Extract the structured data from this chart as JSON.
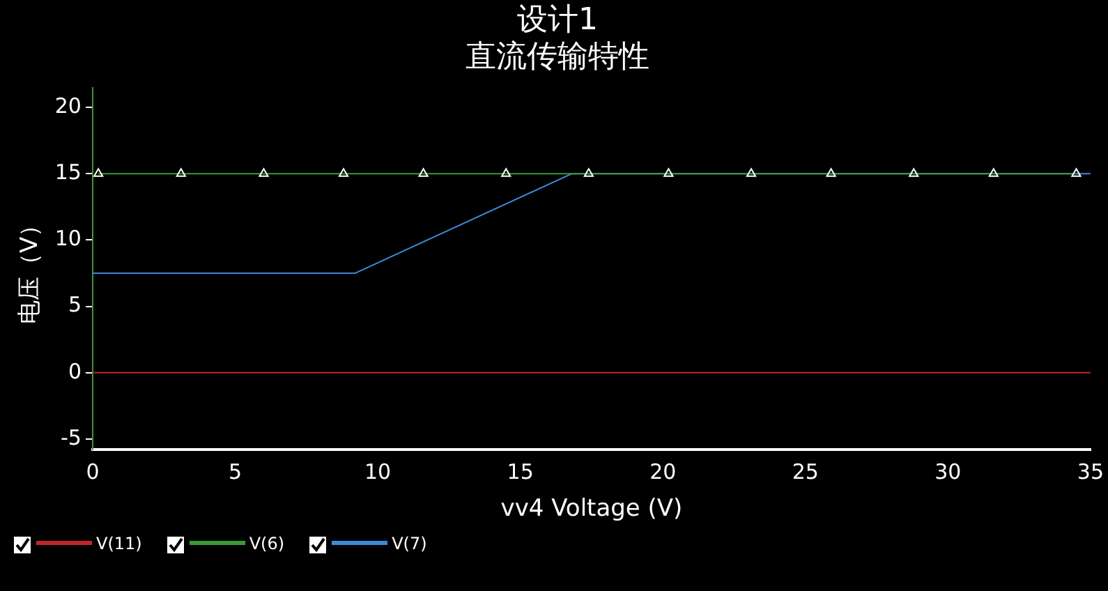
{
  "chart_data": {
    "type": "line",
    "title": "设计1",
    "subtitle": "直流传输特性",
    "xlabel": "vv4 Voltage (V)",
    "ylabel": "电压（V）",
    "xlim": [
      0,
      35
    ],
    "xticks": [
      0,
      5,
      10,
      15,
      20,
      25,
      30,
      35
    ],
    "ylim": [
      -5.8,
      21.5
    ],
    "yticks": [
      -5,
      0,
      5,
      10,
      15,
      20
    ],
    "grid": false,
    "legend": "bottom left",
    "line_style": "solid",
    "series": [
      {
        "name": "V(11)",
        "color": "#c0272d",
        "x": [
          0,
          35
        ],
        "values": [
          0,
          0
        ],
        "marker": "none"
      },
      {
        "name": "V(6)",
        "color": "#3a9a3a",
        "x": [
          0.2,
          3.1,
          6.0,
          8.8,
          11.6,
          14.5,
          17.4,
          20.2,
          23.1,
          25.9,
          28.8,
          31.6,
          34.5
        ],
        "values": [
          15,
          15,
          15,
          15,
          15,
          15,
          15,
          15,
          15,
          15,
          15,
          15,
          15
        ],
        "marker": "triangle"
      },
      {
        "name": "V(7)",
        "color": "#3c8ad8",
        "x": [
          0,
          9.2,
          16.8,
          35
        ],
        "values": [
          7.5,
          7.5,
          15,
          15
        ],
        "marker": "none"
      }
    ]
  }
}
